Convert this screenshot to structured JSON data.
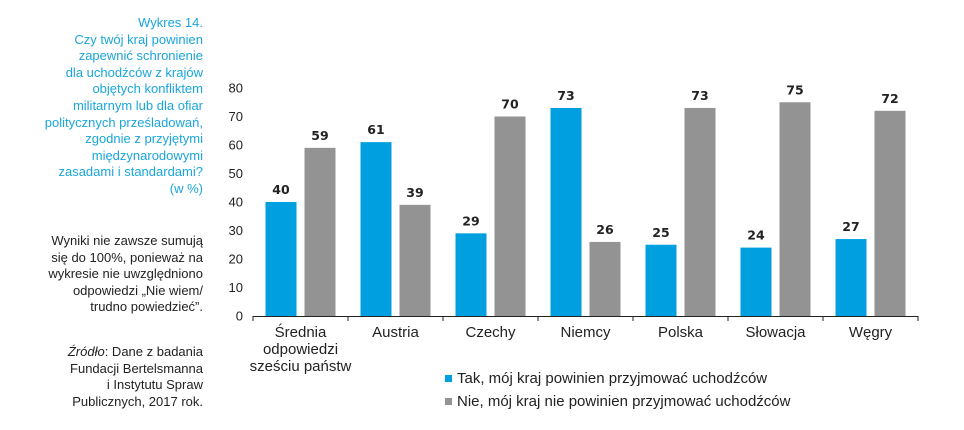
{
  "sidebar": {
    "caption_lines": [
      "Wykres 14.",
      "Czy twój kraj powinien",
      "zapewnić schronienie",
      "dla uchodźców z krajów",
      "objętych konfliktem",
      "militarnym lub dla ofiar",
      "politycznych prześladowań,",
      "zgodnie z przyjętymi",
      "międzynarodowymi",
      "zasadami i standardami?",
      "(w %)"
    ],
    "note_lines": [
      "Wyniki nie zawsze sumują",
      "się do 100%, ponieważ na",
      "wykresie nie uwzględniono",
      "odpowiedzi „Nie wiem/",
      "trudno powiedzieć”."
    ],
    "source_label": "Źródło",
    "source_lines": [
      ": Dane z badania",
      "Fundacji Bertelsmanna",
      "i Instytutu Spraw",
      "Publicznych, 2017 rok."
    ]
  },
  "colors": {
    "tak": "#009fdf",
    "nie": "#939393"
  },
  "chart_data": {
    "type": "bar",
    "categories": [
      [
        "Średnia",
        "odpowiedzi",
        "sześciu państw"
      ],
      [
        "Austria"
      ],
      [
        "Czechy"
      ],
      [
        "Niemcy"
      ],
      [
        "Polska"
      ],
      [
        "Słowacja"
      ],
      [
        "Węgry"
      ]
    ],
    "series": [
      {
        "name": "Tak, mój kraj powinien przyjmować uchodźców",
        "values": [
          40,
          61,
          29,
          73,
          25,
          24,
          27
        ]
      },
      {
        "name": "Nie, mój kraj nie powinien przyjmować uchodźców",
        "values": [
          59,
          39,
          70,
          26,
          73,
          75,
          72
        ]
      }
    ],
    "ylim": [
      0,
      80
    ],
    "yticks": [
      0,
      10,
      20,
      30,
      40,
      50,
      60,
      70,
      80
    ],
    "grid": false,
    "legend": "bottom"
  }
}
